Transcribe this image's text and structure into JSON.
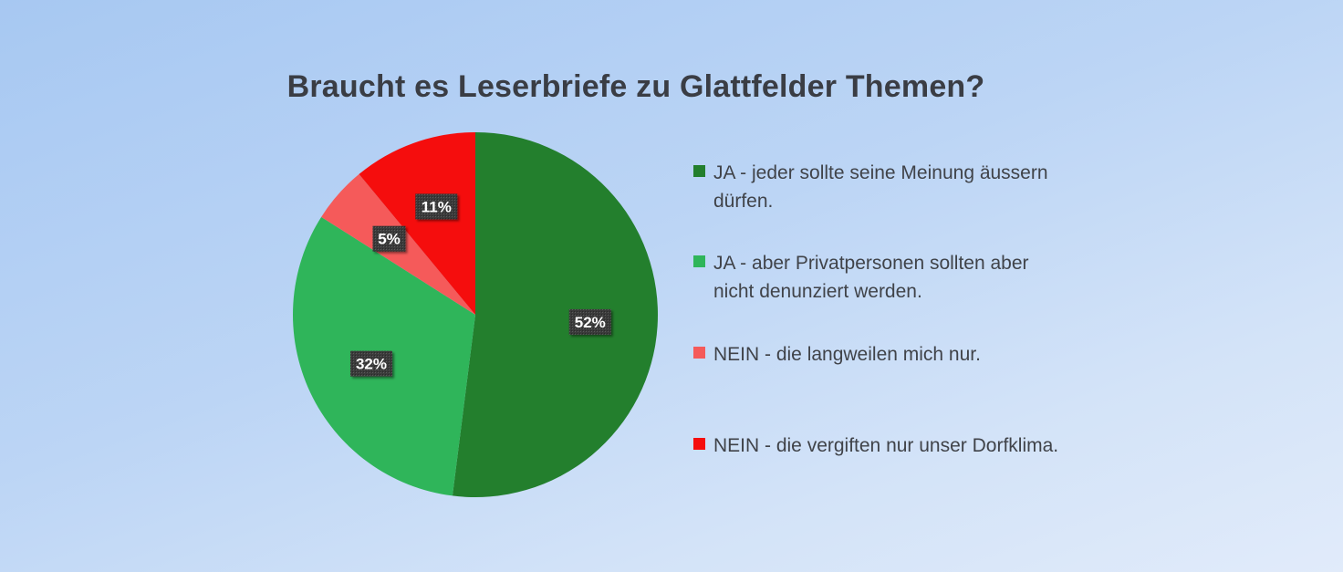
{
  "chart_data": {
    "type": "pie",
    "title": "Braucht es Leserbriefe zu Glattfelder Themen?",
    "legend_position": "right",
    "slices": [
      {
        "label": "JA - jeder sollte seine Meinung äussern dürfen.",
        "value": 52,
        "display": "52%",
        "color": "#237f2d"
      },
      {
        "label": "JA - aber Privatpersonen sollten aber nicht denunziert werden.",
        "value": 32,
        "display": "32%",
        "color": "#2fb55a"
      },
      {
        "label": "NEIN - die langweilen mich nur.",
        "value": 5,
        "display": "5%",
        "color": "#f55a5a"
      },
      {
        "label": "NEIN - die vergiften nur unser Dorfklima.",
        "value": 11,
        "display": "11%",
        "color": "#f50d0d"
      }
    ]
  }
}
